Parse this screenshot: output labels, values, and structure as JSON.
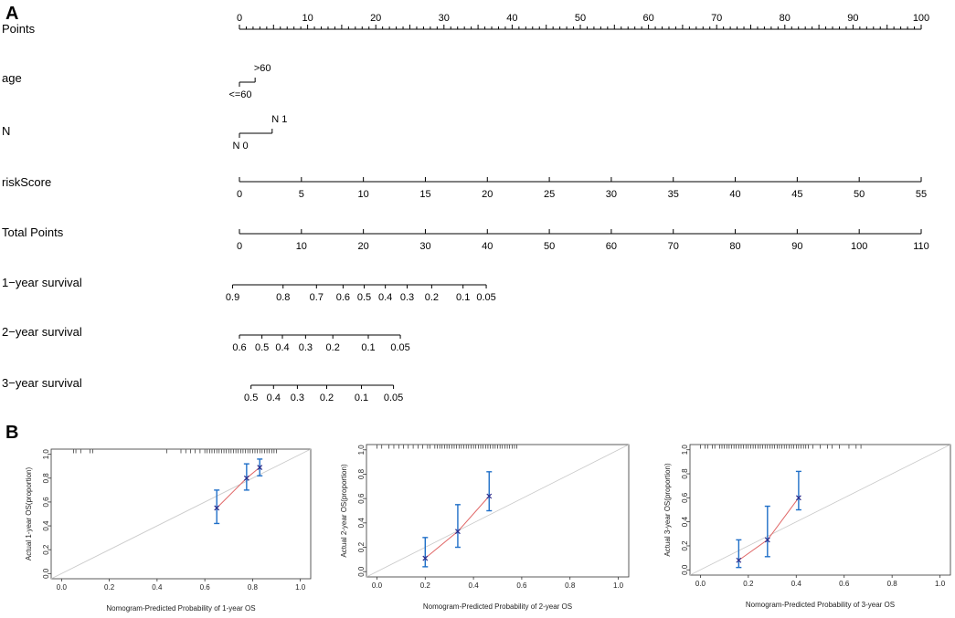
{
  "panels": {
    "a": "A",
    "b": "B"
  },
  "nomogram": {
    "rows": [
      {
        "label": "Points",
        "type": "linear",
        "min": 0,
        "max": 100,
        "labeled": [
          0,
          10,
          20,
          30,
          40,
          50,
          60,
          70,
          80,
          90,
          100
        ],
        "minor_step": 1,
        "major_step": 5
      },
      {
        "label": "age",
        "type": "categorical",
        "levels": [
          {
            "label": "<=60",
            "points": 0,
            "side": "below"
          },
          {
            "label": ">60",
            "points": 2.3,
            "side": "above"
          }
        ]
      },
      {
        "label": "N",
        "type": "categorical",
        "levels": [
          {
            "label": "N 0",
            "points": 0,
            "side": "below"
          },
          {
            "label": "N 1",
            "points": 4.8,
            "side": "above"
          }
        ]
      },
      {
        "label": "riskScore",
        "type": "linear",
        "min": 0,
        "max": 55,
        "labeled": [
          0,
          5,
          10,
          15,
          20,
          25,
          30,
          35,
          40,
          45,
          50,
          55
        ]
      },
      {
        "label": "Total Points",
        "type": "linear",
        "min": 0,
        "max": 110,
        "labeled": [
          0,
          10,
          20,
          30,
          40,
          50,
          60,
          70,
          80,
          90,
          100,
          110
        ]
      },
      {
        "label": "1−year survival",
        "type": "prob",
        "ticks": [
          {
            "label": "0.9",
            "points": -1
          },
          {
            "label": "0.8",
            "points": 6.4
          },
          {
            "label": "0.7",
            "points": 11.3
          },
          {
            "label": "0.6",
            "points": 15.2
          },
          {
            "label": "0.5",
            "points": 18.3
          },
          {
            "label": "0.4",
            "points": 21.4
          },
          {
            "label": "0.3",
            "points": 24.6
          },
          {
            "label": "0.2",
            "points": 28.2
          },
          {
            "label": "0.1",
            "points": 32.8
          },
          {
            "label": "0.05",
            "points": 36.2
          }
        ]
      },
      {
        "label": "2−year survival",
        "type": "prob",
        "ticks": [
          {
            "label": "0.6",
            "points": 0
          },
          {
            "label": "0.5",
            "points": 3.3
          },
          {
            "label": "0.4",
            "points": 6.3
          },
          {
            "label": "0.3",
            "points": 9.7
          },
          {
            "label": "0.2",
            "points": 13.7
          },
          {
            "label": "0.1",
            "points": 18.9
          },
          {
            "label": "0.05",
            "points": 23.6
          }
        ]
      },
      {
        "label": "3−year survival",
        "type": "prob",
        "ticks": [
          {
            "label": "0.5",
            "points": 1.7
          },
          {
            "label": "0.4",
            "points": 5
          },
          {
            "label": "0.3",
            "points": 8.5
          },
          {
            "label": "0.2",
            "points": 12.8
          },
          {
            "label": "0.1",
            "points": 17.9
          },
          {
            "label": "0.05",
            "points": 22.6
          }
        ]
      }
    ]
  },
  "chart_data": [
    {
      "type": "scatter",
      "xlabel": "Nomogram-Predicted Probability of 1-year OS",
      "ylabel": "Actual 1-year OS(proportion)",
      "xlim": [
        0,
        1
      ],
      "ylim": [
        0,
        1
      ],
      "xticks": [
        "0.0",
        "0.2",
        "0.4",
        "0.6",
        "0.8",
        "1.0"
      ],
      "yticks": [
        "0.0",
        "0.2",
        "0.4",
        "0.6",
        "0.8",
        "1.0"
      ],
      "reference_line": "diagonal",
      "points": [
        {
          "x": 0.65,
          "y": 0.55,
          "lo": 0.42,
          "hi": 0.7
        },
        {
          "x": 0.775,
          "y": 0.8,
          "lo": 0.7,
          "hi": 0.92
        },
        {
          "x": 0.83,
          "y": 0.89,
          "lo": 0.82,
          "hi": 0.96
        }
      ],
      "rug": [
        0.05,
        0.06,
        0.08,
        0.12,
        0.13,
        0.44,
        0.5,
        0.52,
        0.54,
        0.56,
        0.58,
        0.6,
        0.61,
        0.62,
        0.63,
        0.64,
        0.65,
        0.66,
        0.67,
        0.68,
        0.69,
        0.7,
        0.71,
        0.72,
        0.73,
        0.74,
        0.75,
        0.76,
        0.77,
        0.78,
        0.79,
        0.8,
        0.81,
        0.82,
        0.83,
        0.84,
        0.85,
        0.86,
        0.87,
        0.88,
        0.89,
        0.9
      ]
    },
    {
      "type": "scatter",
      "xlabel": "Nomogram-Predicted Probability of 2-year OS",
      "ylabel": "Actual 2-year OS(proportion)",
      "xlim": [
        0,
        1
      ],
      "ylim": [
        0,
        1
      ],
      "xticks": [
        "0.0",
        "0.2",
        "0.4",
        "0.6",
        "0.8",
        "1.0"
      ],
      "yticks": [
        "0.0",
        "0.2",
        "0.4",
        "0.6",
        "0.8",
        "1.0"
      ],
      "reference_line": "diagonal",
      "points": [
        {
          "x": 0.2,
          "y": 0.11,
          "lo": 0.04,
          "hi": 0.28
        },
        {
          "x": 0.335,
          "y": 0.33,
          "lo": 0.2,
          "hi": 0.55
        },
        {
          "x": 0.465,
          "y": 0.62,
          "lo": 0.5,
          "hi": 0.82
        }
      ],
      "rug": [
        0.0,
        0.02,
        0.05,
        0.07,
        0.09,
        0.11,
        0.13,
        0.15,
        0.17,
        0.19,
        0.21,
        0.22,
        0.24,
        0.25,
        0.26,
        0.27,
        0.28,
        0.29,
        0.3,
        0.31,
        0.32,
        0.33,
        0.34,
        0.35,
        0.36,
        0.37,
        0.38,
        0.39,
        0.4,
        0.41,
        0.42,
        0.43,
        0.44,
        0.45,
        0.46,
        0.47,
        0.48,
        0.49,
        0.5,
        0.51,
        0.52,
        0.53,
        0.54,
        0.55,
        0.56,
        0.57,
        0.58
      ]
    },
    {
      "type": "scatter",
      "xlabel": "Nomogram-Predicted Probability of 3-year OS",
      "ylabel": "Actual 3-year OS(proportion)",
      "xlim": [
        0,
        1
      ],
      "ylim": [
        0,
        1
      ],
      "xticks": [
        "0.0",
        "0.2",
        "0.4",
        "0.6",
        "0.8",
        "1.0"
      ],
      "yticks": [
        "0.0",
        "0.2",
        "0.4",
        "0.6",
        "0.8",
        "1.0"
      ],
      "reference_line": "diagonal",
      "points": [
        {
          "x": 0.16,
          "y": 0.08,
          "lo": 0.02,
          "hi": 0.25
        },
        {
          "x": 0.28,
          "y": 0.25,
          "lo": 0.11,
          "hi": 0.53
        },
        {
          "x": 0.41,
          "y": 0.6,
          "lo": 0.5,
          "hi": 0.82
        }
      ],
      "rug": [
        0.0,
        0.02,
        0.03,
        0.05,
        0.06,
        0.08,
        0.09,
        0.1,
        0.11,
        0.12,
        0.13,
        0.14,
        0.15,
        0.16,
        0.17,
        0.18,
        0.19,
        0.2,
        0.21,
        0.22,
        0.23,
        0.24,
        0.25,
        0.26,
        0.27,
        0.28,
        0.29,
        0.3,
        0.31,
        0.32,
        0.33,
        0.34,
        0.35,
        0.36,
        0.37,
        0.38,
        0.39,
        0.4,
        0.41,
        0.42,
        0.43,
        0.44,
        0.45,
        0.47,
        0.5,
        0.53,
        0.55,
        0.58,
        0.62,
        0.65,
        0.67
      ]
    }
  ],
  "colors": {
    "axis": "#000000",
    "error_bar": "#1f6fc8",
    "marker": "#2a2a8a",
    "fit_line": "#e06666",
    "ideal_line": "#c8c8c8"
  }
}
